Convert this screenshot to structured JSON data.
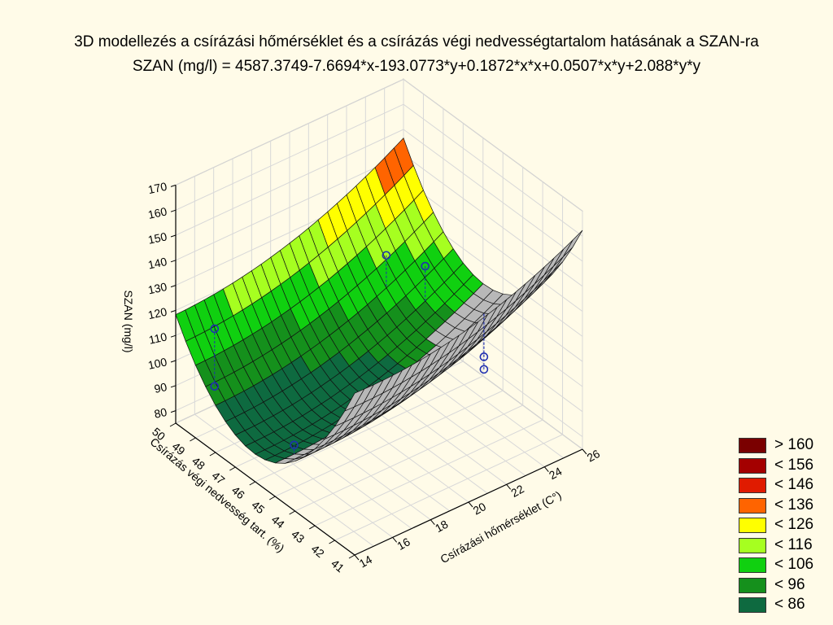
{
  "chart_data": {
    "type": "surface3d",
    "title": "3D modellezés a  csírázási hőmérséklet és a csírázás végi nedvességtartalom hatásának a SZAN-ra",
    "subtitle": "SZAN (mg/l) = 4587.3749-7.6694*x-193.0773*y+0.1872*x*x+0.0507*x*y+2.088*y*y",
    "xlabel": "Csírázási hőmérséklet (C°)",
    "ylabel": "Csírázás végi nedvesség tart. (%)",
    "zlabel": "SZAN (mg/l)",
    "x_ticks": [
      14,
      16,
      18,
      20,
      22,
      24,
      26
    ],
    "y_ticks": [
      41,
      42,
      43,
      44,
      45,
      46,
      47,
      48,
      49,
      50
    ],
    "z_ticks": [
      80,
      90,
      100,
      110,
      120,
      130,
      140,
      150,
      160,
      170
    ],
    "xlim": [
      14,
      26
    ],
    "ylim": [
      41,
      50
    ],
    "zlim": [
      75,
      170
    ],
    "coefficients": {
      "const": 4587.3749,
      "x": -7.6694,
      "y": -193.0773,
      "xx": 0.1872,
      "xy": 0.0507,
      "yy": 2.088
    },
    "observed_points": [
      {
        "x": 15,
        "y": 49,
        "z": 115
      },
      {
        "x": 15,
        "y": 49,
        "z": 92
      },
      {
        "x": 15,
        "y": 45,
        "z": 92
      },
      {
        "x": 23,
        "y": 48,
        "z": 122
      },
      {
        "x": 24,
        "y": 47,
        "z": 120
      },
      {
        "x": 25,
        "y": 45,
        "z": 92
      },
      {
        "x": 25,
        "y": 45,
        "z": 87
      }
    ],
    "legend": [
      {
        "label": "> 160",
        "color": "#7a0000"
      },
      {
        "label": "< 156",
        "color": "#a40000"
      },
      {
        "label": "< 146",
        "color": "#e01b00"
      },
      {
        "label": "< 136",
        "color": "#ff6400"
      },
      {
        "label": "< 126",
        "color": "#ffff00"
      },
      {
        "label": "< 116",
        "color": "#a6ff20"
      },
      {
        "label": "< 106",
        "color": "#10d010"
      },
      {
        "label": "< 96",
        "color": "#15901c"
      },
      {
        "label": "< 86",
        "color": "#0e6a40"
      }
    ],
    "grid": true
  }
}
